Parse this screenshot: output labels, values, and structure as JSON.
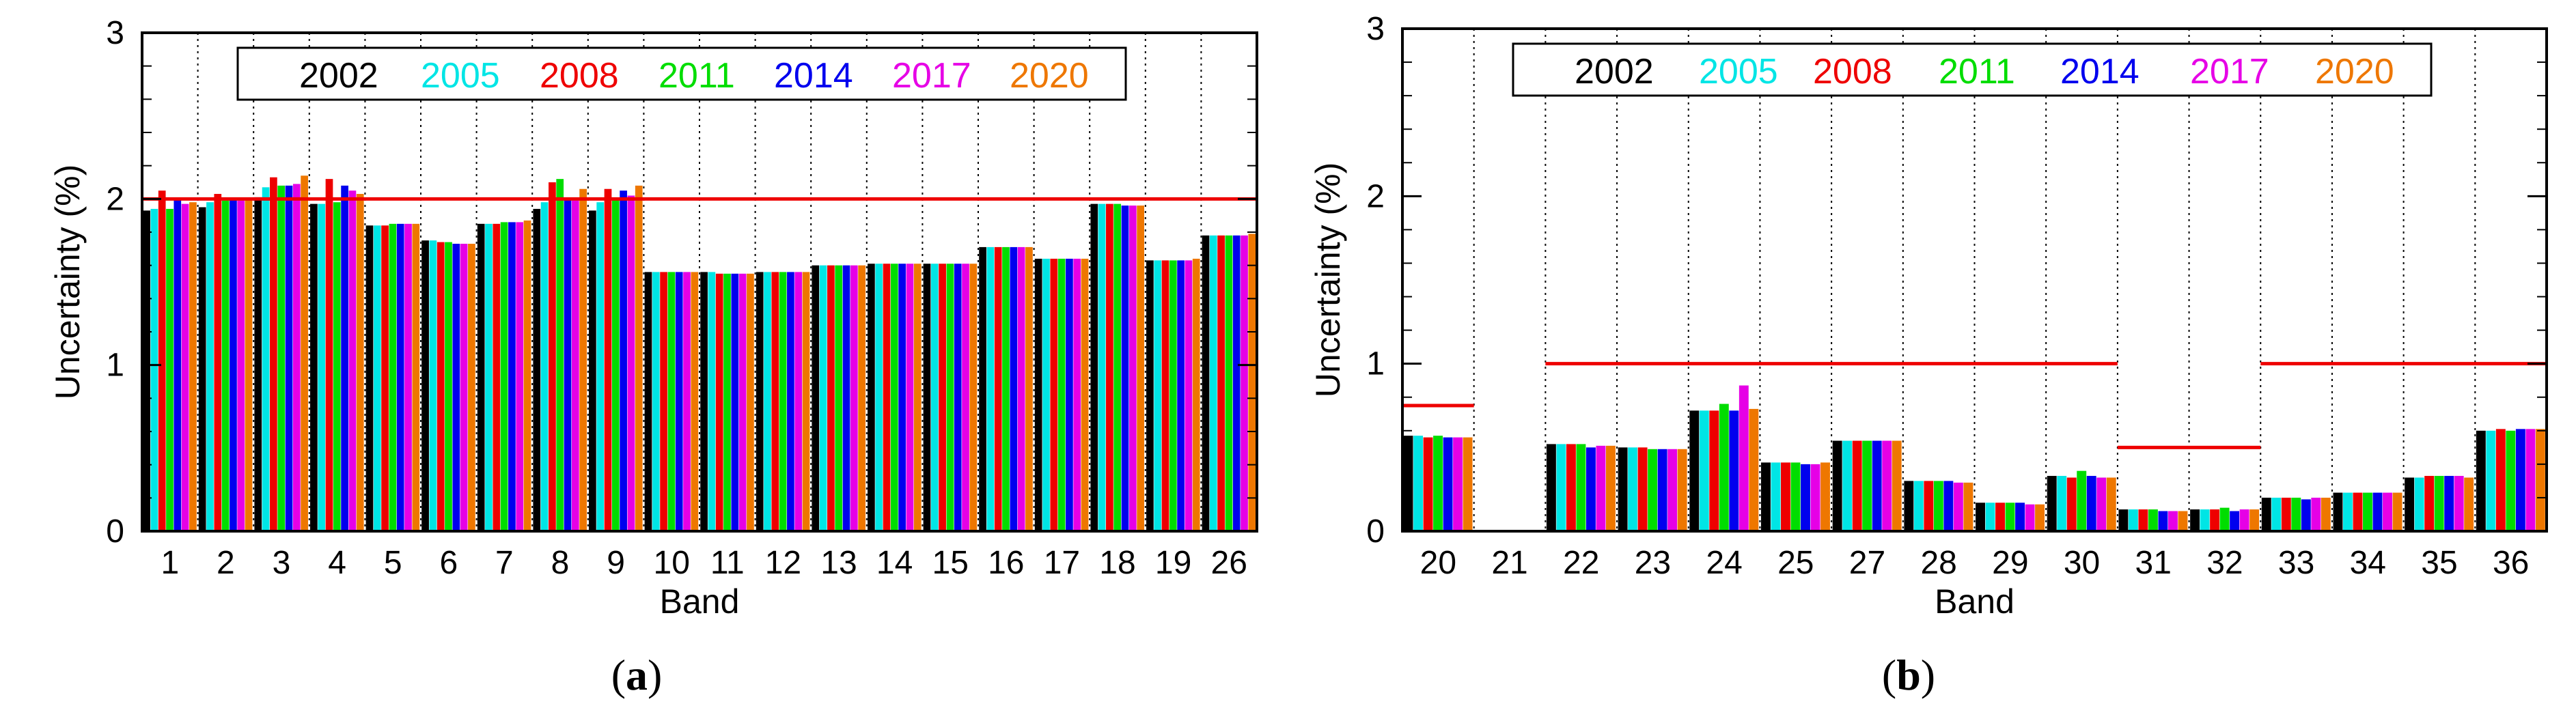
{
  "colors": {
    "series": [
      "#000000",
      "#00e5e5",
      "#ee0000",
      "#00dd00",
      "#0000ee",
      "#e600e6",
      "#ee7700"
    ],
    "threshold": "#ee0000",
    "axis": "#000000",
    "grid": "#000000"
  },
  "chart_data": [
    {
      "panel_label": "(a)",
      "panel_letter": "a",
      "type": "bar",
      "title": "",
      "xlabel": "Band",
      "ylabel": "Uncertainty (%)",
      "ylim": [
        0,
        3
      ],
      "yticks": [
        "0",
        "1",
        "2",
        "3"
      ],
      "grid": "vertical dotted",
      "legend_position": "top",
      "legend": [
        "2002",
        "2005",
        "2008",
        "2011",
        "2014",
        "2017",
        "2020"
      ],
      "categories": [
        "1",
        "2",
        "3",
        "4",
        "5",
        "6",
        "7",
        "8",
        "9",
        "10",
        "11",
        "12",
        "13",
        "14",
        "15",
        "16",
        "17",
        "18",
        "19",
        "26"
      ],
      "series": [
        {
          "name": "2002",
          "values": [
            1.93,
            1.95,
            2.01,
            1.97,
            1.84,
            1.75,
            1.85,
            1.94,
            1.93,
            1.56,
            1.56,
            1.56,
            1.6,
            1.61,
            1.61,
            1.71,
            1.64,
            1.97,
            1.63,
            1.78
          ]
        },
        {
          "name": "2005",
          "values": [
            1.94,
            1.98,
            2.07,
            1.97,
            1.84,
            1.75,
            1.85,
            1.98,
            1.98,
            1.56,
            1.56,
            1.56,
            1.6,
            1.61,
            1.61,
            1.71,
            1.64,
            1.97,
            1.63,
            1.78
          ]
        },
        {
          "name": "2008",
          "values": [
            2.05,
            2.03,
            2.13,
            2.12,
            1.84,
            1.74,
            1.85,
            2.1,
            2.06,
            1.56,
            1.55,
            1.56,
            1.6,
            1.61,
            1.61,
            1.71,
            1.64,
            1.97,
            1.63,
            1.78
          ]
        },
        {
          "name": "2011",
          "values": [
            1.94,
            1.99,
            2.08,
            1.98,
            1.85,
            1.74,
            1.86,
            2.12,
            2.0,
            1.56,
            1.55,
            1.56,
            1.6,
            1.61,
            1.61,
            1.71,
            1.64,
            1.97,
            1.63,
            1.78
          ]
        },
        {
          "name": "2014",
          "values": [
            2.0,
            2.0,
            2.08,
            2.08,
            1.85,
            1.73,
            1.86,
            2.0,
            2.05,
            1.56,
            1.55,
            1.56,
            1.6,
            1.61,
            1.61,
            1.71,
            1.64,
            1.96,
            1.63,
            1.78
          ]
        },
        {
          "name": "2017",
          "values": [
            1.97,
            1.99,
            2.09,
            2.05,
            1.85,
            1.73,
            1.86,
            1.99,
            2.02,
            1.56,
            1.55,
            1.56,
            1.6,
            1.61,
            1.61,
            1.71,
            1.64,
            1.96,
            1.63,
            1.78
          ]
        },
        {
          "name": "2020",
          "values": [
            1.98,
            2.0,
            2.14,
            2.03,
            1.85,
            1.73,
            1.87,
            2.06,
            2.08,
            1.56,
            1.55,
            1.56,
            1.6,
            1.61,
            1.61,
            1.71,
            1.64,
            1.96,
            1.64,
            1.79
          ]
        }
      ],
      "thresholds": [
        {
          "from_category": "1",
          "to_category": "26",
          "value": 2.0
        }
      ]
    },
    {
      "panel_label": "(b)",
      "panel_letter": "b",
      "type": "bar",
      "title": "",
      "xlabel": "Band",
      "ylabel": "Uncertainty (%)",
      "ylim": [
        0,
        3
      ],
      "yticks": [
        "0",
        "1",
        "2",
        "3"
      ],
      "grid": "vertical dotted",
      "legend_position": "top",
      "legend": [
        "2002",
        "2005",
        "2008",
        "2011",
        "2014",
        "2017",
        "2020"
      ],
      "categories": [
        "20",
        "21",
        "22",
        "23",
        "24",
        "25",
        "27",
        "28",
        "29",
        "30",
        "31",
        "32",
        "33",
        "34",
        "35",
        "36"
      ],
      "series": [
        {
          "name": "2002",
          "values": [
            0.57,
            0,
            0.52,
            0.5,
            0.72,
            0.41,
            0.54,
            0.3,
            0.17,
            0.33,
            0.13,
            0.13,
            0.2,
            0.23,
            0.32,
            0.6
          ]
        },
        {
          "name": "2005",
          "values": [
            0.57,
            0,
            0.52,
            0.5,
            0.72,
            0.41,
            0.54,
            0.3,
            0.17,
            0.33,
            0.13,
            0.13,
            0.2,
            0.23,
            0.32,
            0.6
          ]
        },
        {
          "name": "2008",
          "values": [
            0.56,
            0,
            0.52,
            0.5,
            0.72,
            0.41,
            0.54,
            0.3,
            0.17,
            0.32,
            0.13,
            0.13,
            0.2,
            0.23,
            0.33,
            0.61
          ]
        },
        {
          "name": "2011",
          "values": [
            0.57,
            0,
            0.52,
            0.49,
            0.76,
            0.41,
            0.54,
            0.3,
            0.17,
            0.36,
            0.13,
            0.14,
            0.2,
            0.23,
            0.33,
            0.6
          ]
        },
        {
          "name": "2014",
          "values": [
            0.56,
            0,
            0.5,
            0.49,
            0.72,
            0.4,
            0.54,
            0.3,
            0.17,
            0.33,
            0.12,
            0.12,
            0.19,
            0.23,
            0.33,
            0.61
          ]
        },
        {
          "name": "2017",
          "values": [
            0.56,
            0,
            0.51,
            0.49,
            0.87,
            0.4,
            0.54,
            0.29,
            0.16,
            0.32,
            0.12,
            0.13,
            0.2,
            0.23,
            0.33,
            0.61
          ]
        },
        {
          "name": "2020",
          "values": [
            0.56,
            0,
            0.51,
            0.49,
            0.73,
            0.41,
            0.54,
            0.29,
            0.16,
            0.32,
            0.12,
            0.13,
            0.2,
            0.23,
            0.32,
            0.61
          ]
        }
      ],
      "thresholds": [
        {
          "from_category": "20",
          "to_category": "20",
          "value": 0.75
        },
        {
          "from_category": "22",
          "to_category": "30",
          "value": 1.0
        },
        {
          "from_category": "31",
          "to_category": "32",
          "value": 0.5
        },
        {
          "from_category": "33",
          "to_category": "36",
          "value": 1.0
        }
      ]
    }
  ]
}
